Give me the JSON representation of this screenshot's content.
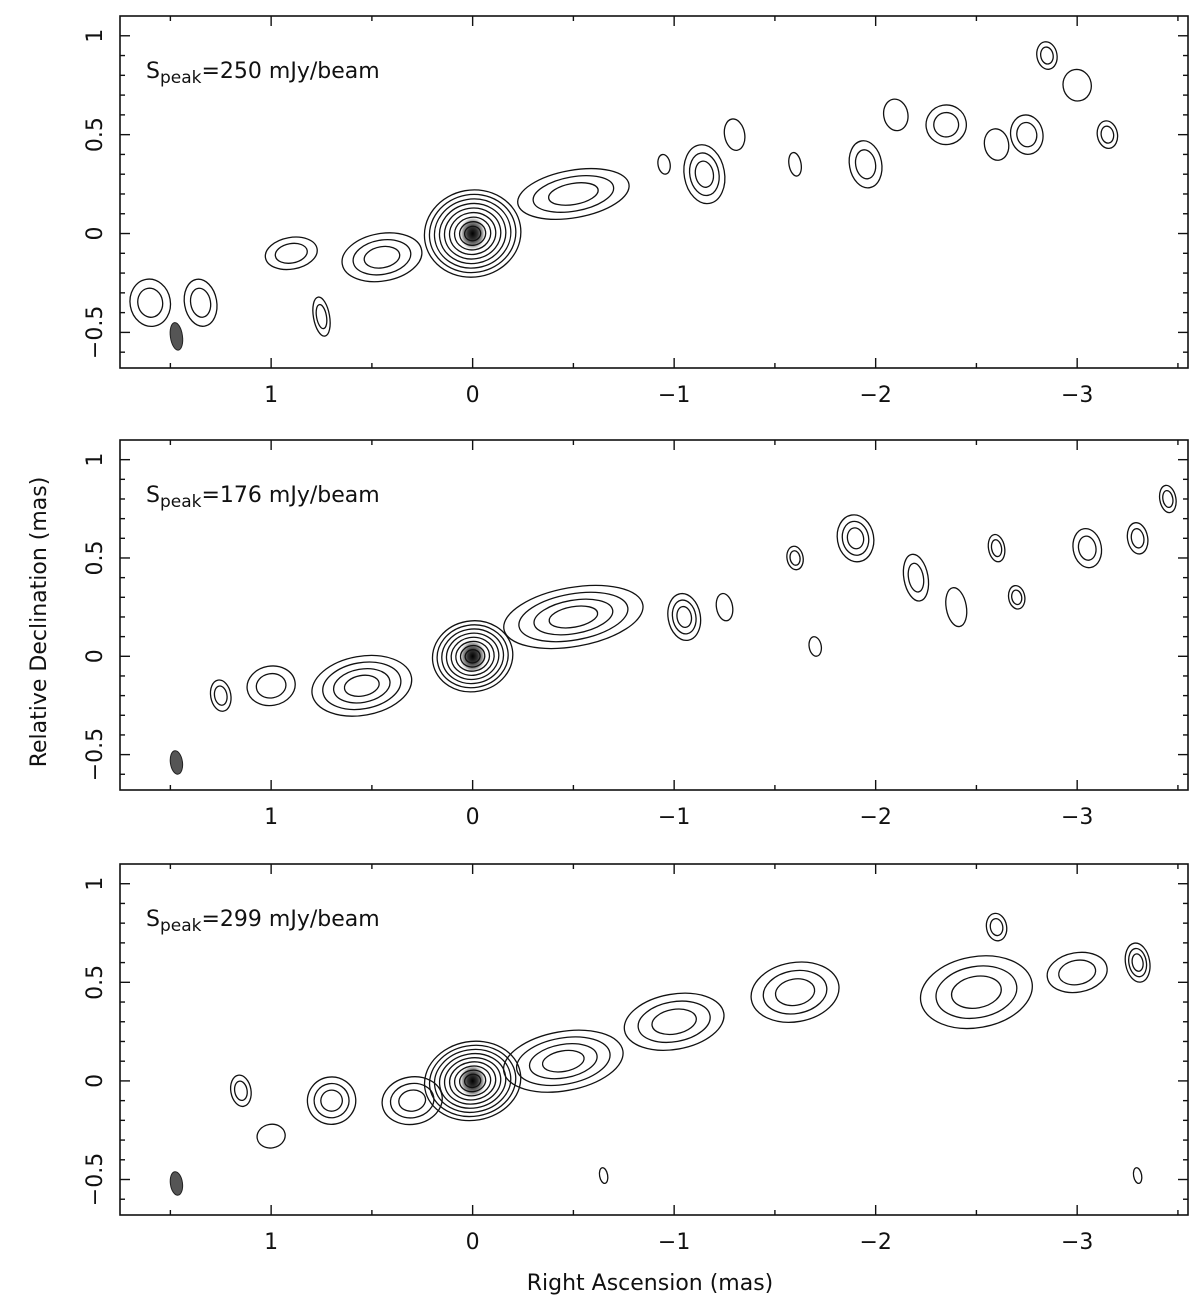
{
  "chart_data": [
    {
      "type": "contour",
      "xlim": [
        1.75,
        -3.55
      ],
      "ylim": [
        -0.68,
        1.1
      ],
      "xticks": [
        1,
        0,
        -1,
        -2,
        -3
      ],
      "xtick_labels": [
        "1",
        "0",
        "−1",
        "−2",
        "−3"
      ],
      "yticks": [
        -0.5,
        0,
        0.5,
        1
      ],
      "ytick_labels": [
        "−0.5",
        "0",
        "0.5",
        "1"
      ],
      "annotation": {
        "prefix": "S",
        "subscript": "peak",
        "text": "=250 mJy/beam"
      },
      "peak": {
        "x": 0,
        "y": 0
      },
      "beam": {
        "x": 1.47,
        "y": -0.52,
        "major": 0.07,
        "minor": 0.03
      },
      "components": [
        {
          "x": 0.0,
          "y": 0.0,
          "rx": 0.24,
          "ry": 0.22,
          "levels": 9
        },
        {
          "x": -0.5,
          "y": 0.2,
          "rx": 0.28,
          "ry": 0.12,
          "levels": 3
        },
        {
          "x": 0.45,
          "y": -0.12,
          "rx": 0.2,
          "ry": 0.12,
          "levels": 3
        },
        {
          "x": 0.9,
          "y": -0.1,
          "rx": 0.13,
          "ry": 0.08,
          "levels": 2
        },
        {
          "x": 1.6,
          "y": -0.35,
          "rx": 0.1,
          "ry": 0.12,
          "levels": 2
        },
        {
          "x": 1.35,
          "y": -0.35,
          "rx": 0.08,
          "ry": 0.12,
          "levels": 2
        },
        {
          "x": -1.15,
          "y": 0.3,
          "rx": 0.1,
          "ry": 0.15,
          "levels": 3
        },
        {
          "x": -1.3,
          "y": 0.5,
          "rx": 0.05,
          "ry": 0.08,
          "levels": 1
        },
        {
          "x": -1.95,
          "y": 0.35,
          "rx": 0.08,
          "ry": 0.12,
          "levels": 2
        },
        {
          "x": -2.35,
          "y": 0.55,
          "rx": 0.1,
          "ry": 0.1,
          "levels": 2
        },
        {
          "x": -2.6,
          "y": 0.45,
          "rx": 0.06,
          "ry": 0.08,
          "levels": 1
        },
        {
          "x": -2.75,
          "y": 0.5,
          "rx": 0.08,
          "ry": 0.1,
          "levels": 2
        },
        {
          "x": -2.85,
          "y": 0.9,
          "rx": 0.05,
          "ry": 0.07,
          "levels": 2
        },
        {
          "x": -3.0,
          "y": 0.75,
          "rx": 0.07,
          "ry": 0.08,
          "levels": 1
        },
        {
          "x": -3.15,
          "y": 0.5,
          "rx": 0.05,
          "ry": 0.07,
          "levels": 2
        },
        {
          "x": -2.1,
          "y": 0.6,
          "rx": 0.06,
          "ry": 0.08,
          "levels": 1
        },
        {
          "x": 0.75,
          "y": -0.42,
          "rx": 0.04,
          "ry": 0.1,
          "levels": 2
        },
        {
          "x": -0.95,
          "y": 0.35,
          "rx": 0.03,
          "ry": 0.05,
          "levels": 1
        },
        {
          "x": -1.6,
          "y": 0.35,
          "rx": 0.03,
          "ry": 0.06,
          "levels": 1
        }
      ]
    },
    {
      "type": "contour",
      "xlim": [
        1.75,
        -3.55
      ],
      "ylim": [
        -0.68,
        1.1
      ],
      "xticks": [
        1,
        0,
        -1,
        -2,
        -3
      ],
      "xtick_labels": [
        "1",
        "0",
        "−1",
        "−2",
        "−3"
      ],
      "yticks": [
        -0.5,
        0,
        0.5,
        1
      ],
      "ytick_labels": [
        "−0.5",
        "0",
        "0.5",
        "1"
      ],
      "annotation": {
        "prefix": "S",
        "subscript": "peak",
        "text": "=176 mJy/beam"
      },
      "peak": {
        "x": 0,
        "y": 0
      },
      "beam": {
        "x": 1.47,
        "y": -0.54,
        "major": 0.06,
        "minor": 0.03
      },
      "components": [
        {
          "x": 0.0,
          "y": 0.0,
          "rx": 0.2,
          "ry": 0.18,
          "levels": 8
        },
        {
          "x": -0.5,
          "y": 0.2,
          "rx": 0.35,
          "ry": 0.15,
          "levels": 4
        },
        {
          "x": 0.55,
          "y": -0.15,
          "rx": 0.25,
          "ry": 0.15,
          "levels": 4
        },
        {
          "x": 1.0,
          "y": -0.15,
          "rx": 0.12,
          "ry": 0.1,
          "levels": 2
        },
        {
          "x": 1.25,
          "y": -0.2,
          "rx": 0.05,
          "ry": 0.08,
          "levels": 2
        },
        {
          "x": -1.05,
          "y": 0.2,
          "rx": 0.08,
          "ry": 0.12,
          "levels": 3
        },
        {
          "x": -1.25,
          "y": 0.25,
          "rx": 0.04,
          "ry": 0.07,
          "levels": 1
        },
        {
          "x": -1.6,
          "y": 0.5,
          "rx": 0.04,
          "ry": 0.06,
          "levels": 2
        },
        {
          "x": -1.9,
          "y": 0.6,
          "rx": 0.09,
          "ry": 0.12,
          "levels": 3
        },
        {
          "x": -2.2,
          "y": 0.4,
          "rx": 0.06,
          "ry": 0.12,
          "levels": 2
        },
        {
          "x": -2.6,
          "y": 0.55,
          "rx": 0.04,
          "ry": 0.07,
          "levels": 2
        },
        {
          "x": -2.7,
          "y": 0.3,
          "rx": 0.04,
          "ry": 0.06,
          "levels": 2
        },
        {
          "x": -3.05,
          "y": 0.55,
          "rx": 0.07,
          "ry": 0.1,
          "levels": 2
        },
        {
          "x": -3.3,
          "y": 0.6,
          "rx": 0.05,
          "ry": 0.08,
          "levels": 2
        },
        {
          "x": -3.45,
          "y": 0.8,
          "rx": 0.04,
          "ry": 0.07,
          "levels": 2
        },
        {
          "x": -1.7,
          "y": 0.05,
          "rx": 0.03,
          "ry": 0.05,
          "levels": 1
        },
        {
          "x": -2.4,
          "y": 0.25,
          "rx": 0.05,
          "ry": 0.1,
          "levels": 1
        }
      ]
    },
    {
      "type": "contour",
      "xlim": [
        1.75,
        -3.55
      ],
      "ylim": [
        -0.68,
        1.1
      ],
      "xticks": [
        1,
        0,
        -1,
        -2,
        -3
      ],
      "xtick_labels": [
        "1",
        "0",
        "−1",
        "−2",
        "−3"
      ],
      "yticks": [
        -0.5,
        0,
        0.5,
        1
      ],
      "ytick_labels": [
        "−0.5",
        "0",
        "0.5",
        "1"
      ],
      "annotation": {
        "prefix": "S",
        "subscript": "peak",
        "text": "=299 mJy/beam"
      },
      "peak": {
        "x": 0,
        "y": 0
      },
      "beam": {
        "x": 1.47,
        "y": -0.52,
        "major": 0.06,
        "minor": 0.03
      },
      "components": [
        {
          "x": 0.0,
          "y": 0.0,
          "rx": 0.24,
          "ry": 0.2,
          "levels": 9
        },
        {
          "x": -0.45,
          "y": 0.1,
          "rx": 0.3,
          "ry": 0.15,
          "levels": 4
        },
        {
          "x": 0.3,
          "y": -0.1,
          "rx": 0.15,
          "ry": 0.12,
          "levels": 3
        },
        {
          "x": 0.7,
          "y": -0.1,
          "rx": 0.12,
          "ry": 0.12,
          "levels": 3
        },
        {
          "x": 1.15,
          "y": -0.05,
          "rx": 0.05,
          "ry": 0.08,
          "levels": 2
        },
        {
          "x": -1.0,
          "y": 0.3,
          "rx": 0.25,
          "ry": 0.14,
          "levels": 3
        },
        {
          "x": -1.6,
          "y": 0.45,
          "rx": 0.22,
          "ry": 0.15,
          "levels": 3
        },
        {
          "x": -2.5,
          "y": 0.45,
          "rx": 0.28,
          "ry": 0.18,
          "levels": 3
        },
        {
          "x": -3.0,
          "y": 0.55,
          "rx": 0.15,
          "ry": 0.1,
          "levels": 2
        },
        {
          "x": -3.3,
          "y": 0.6,
          "rx": 0.06,
          "ry": 0.1,
          "levels": 3
        },
        {
          "x": -2.6,
          "y": 0.78,
          "rx": 0.05,
          "ry": 0.07,
          "levels": 2
        },
        {
          "x": 1.0,
          "y": -0.28,
          "rx": 0.07,
          "ry": 0.06,
          "levels": 1
        },
        {
          "x": -0.65,
          "y": -0.48,
          "rx": 0.02,
          "ry": 0.04,
          "levels": 1
        },
        {
          "x": -3.3,
          "y": -0.48,
          "rx": 0.02,
          "ry": 0.04,
          "levels": 1
        }
      ]
    }
  ],
  "xlabel": "Right Ascension   (mas)",
  "ylabel": "Relative Declination (mas)"
}
